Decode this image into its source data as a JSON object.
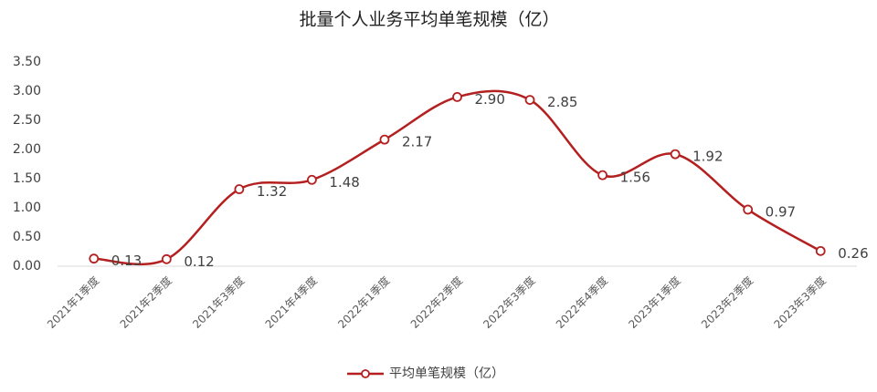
{
  "chart_data": {
    "type": "line",
    "title": "批量个人业务平均单笔规模（亿）",
    "categories": [
      "2021年1季度",
      "2021年2季度",
      "2021年3季度",
      "2021年4季度",
      "2022年1季度",
      "2022年2季度",
      "2022年3季度",
      "2022年4季度",
      "2023年1季度",
      "2023年2季度",
      "2023年3季度"
    ],
    "series": [
      {
        "name": "平均单笔规模（亿）",
        "color": "#b41f1f",
        "values": [
          0.13,
          0.12,
          1.32,
          1.48,
          2.17,
          2.9,
          2.85,
          1.56,
          1.92,
          0.97,
          0.26
        ],
        "value_labels": [
          "0.13",
          "0.12",
          "1.32",
          "1.48",
          "2.17",
          "2.90",
          "2.85",
          "1.56",
          "1.92",
          "0.97",
          "0.26"
        ]
      }
    ],
    "ylim": [
      0,
      3.5
    ],
    "yticks": [
      {
        "value": 0,
        "label": "0.00"
      },
      {
        "value": 0.5,
        "label": "0.50"
      },
      {
        "value": 1,
        "label": "1.00"
      },
      {
        "value": 1.5,
        "label": "1.50"
      },
      {
        "value": 2,
        "label": "2.00"
      },
      {
        "value": 2.5,
        "label": "2.50"
      },
      {
        "value": 3,
        "label": "3.00"
      },
      {
        "value": 3.5,
        "label": "3.50"
      }
    ],
    "grid": false,
    "legend": "bottom",
    "smooth": true
  }
}
